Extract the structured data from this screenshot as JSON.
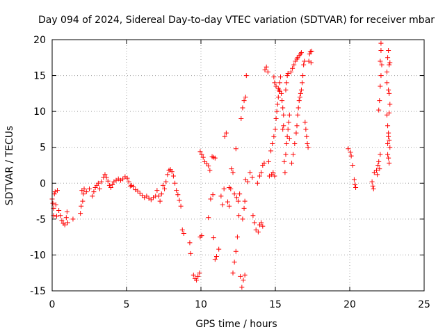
{
  "chart_data": {
    "type": "scatter",
    "title": "Day 094 of 2024, Sidereal Day-to-day VTEC variation (SDTVAR) for receiver mbar",
    "xlabel": "GPS time / hours",
    "ylabel": "SDTVAR / TECUs",
    "xlim": [
      0,
      25
    ],
    "ylim": [
      -15,
      20
    ],
    "xticks": [
      "0",
      "5",
      "10",
      "15",
      "20",
      "25"
    ],
    "yticks": [
      "-15",
      "-10",
      "-5",
      "0",
      "5",
      "10",
      "15",
      "20"
    ],
    "grid": true,
    "marker": "plus",
    "color": "#ff0000",
    "series": [
      {
        "points": [
          [
            0.0,
            -2.2
          ],
          [
            0.05,
            -2.8
          ],
          [
            0.1,
            -3.5
          ],
          [
            0.1,
            -4.5
          ],
          [
            0.15,
            -1.5
          ],
          [
            0.2,
            -1.2
          ],
          [
            0.25,
            -3.0
          ],
          [
            0.3,
            -4.6
          ],
          [
            0.35,
            -1.0
          ],
          [
            0.45,
            -3.8
          ],
          [
            0.55,
            -4.5
          ],
          [
            0.65,
            -5.2
          ],
          [
            0.75,
            -5.6
          ],
          [
            0.85,
            -5.8
          ],
          [
            0.95,
            -4.8
          ],
          [
            1.0,
            -4.0
          ],
          [
            1.05,
            -5.5
          ],
          [
            1.4,
            -5.0
          ],
          [
            1.9,
            -4.2
          ],
          [
            1.95,
            -3.2
          ],
          [
            2.0,
            -1.0
          ],
          [
            2.05,
            -2.5
          ],
          [
            2.1,
            -1.5
          ],
          [
            2.15,
            -0.8
          ],
          [
            2.3,
            -1.2
          ],
          [
            2.5,
            -0.8
          ],
          [
            2.7,
            -1.8
          ],
          [
            2.8,
            -1.2
          ],
          [
            2.9,
            -0.6
          ],
          [
            3.0,
            -0.3
          ],
          [
            3.1,
            0.0
          ],
          [
            3.2,
            -0.8
          ],
          [
            3.3,
            0.2
          ],
          [
            3.45,
            0.8
          ],
          [
            3.55,
            1.2
          ],
          [
            3.65,
            0.8
          ],
          [
            3.75,
            0.3
          ],
          [
            3.85,
            -0.3
          ],
          [
            3.95,
            -0.6
          ],
          [
            4.05,
            -0.2
          ],
          [
            4.15,
            0.2
          ],
          [
            4.3,
            0.4
          ],
          [
            4.45,
            0.6
          ],
          [
            4.6,
            0.4
          ],
          [
            4.75,
            0.6
          ],
          [
            4.9,
            0.9
          ],
          [
            5.05,
            0.7
          ],
          [
            5.15,
            0.2
          ],
          [
            5.25,
            -0.4
          ],
          [
            5.35,
            -0.3
          ],
          [
            5.45,
            -0.5
          ],
          [
            5.6,
            -0.9
          ],
          [
            5.75,
            -1.1
          ],
          [
            5.9,
            -1.4
          ],
          [
            6.05,
            -1.7
          ],
          [
            6.2,
            -2.0
          ],
          [
            6.35,
            -1.8
          ],
          [
            6.5,
            -2.1
          ],
          [
            6.65,
            -2.3
          ],
          [
            6.8,
            -2.0
          ],
          [
            6.95,
            -1.8
          ],
          [
            7.05,
            -1.0
          ],
          [
            7.15,
            -1.8
          ],
          [
            7.25,
            -2.5
          ],
          [
            7.35,
            -1.5
          ],
          [
            7.45,
            -0.3
          ],
          [
            7.55,
            -0.8
          ],
          [
            7.65,
            0.2
          ],
          [
            7.75,
            1.2
          ],
          [
            7.85,
            1.8
          ],
          [
            7.95,
            1.9
          ],
          [
            8.05,
            1.6
          ],
          [
            8.15,
            1.0
          ],
          [
            8.25,
            0.0
          ],
          [
            8.35,
            -1.0
          ],
          [
            8.45,
            -1.6
          ],
          [
            8.55,
            -2.4
          ],
          [
            8.65,
            -3.2
          ],
          [
            8.75,
            -6.5
          ],
          [
            8.85,
            -7.0
          ],
          [
            9.25,
            -8.3
          ],
          [
            9.3,
            -9.8
          ],
          [
            9.5,
            -12.8
          ],
          [
            9.6,
            -13.3
          ],
          [
            9.7,
            -13.5
          ],
          [
            9.8,
            -13.0
          ],
          [
            9.9,
            -12.5
          ],
          [
            9.95,
            -7.5
          ],
          [
            10.05,
            -7.3
          ],
          [
            9.95,
            4.4
          ],
          [
            10.05,
            4.0
          ],
          [
            10.15,
            3.6
          ],
          [
            10.25,
            3.0
          ],
          [
            10.4,
            2.7
          ],
          [
            10.5,
            2.4
          ],
          [
            10.6,
            1.8
          ],
          [
            10.75,
            3.7
          ],
          [
            10.85,
            3.6
          ],
          [
            10.95,
            3.5
          ],
          [
            10.5,
            -4.8
          ],
          [
            10.65,
            -2.2
          ],
          [
            10.8,
            -1.6
          ],
          [
            10.85,
            -7.6
          ],
          [
            10.95,
            -10.6
          ],
          [
            11.05,
            -10.2
          ],
          [
            11.2,
            -9.2
          ],
          [
            11.35,
            -1.8
          ],
          [
            11.45,
            -3.0
          ],
          [
            11.55,
            -0.8
          ],
          [
            11.6,
            6.5
          ],
          [
            11.7,
            7.0
          ],
          [
            11.8,
            -2.6
          ],
          [
            11.9,
            -3.2
          ],
          [
            11.9,
            -0.6
          ],
          [
            12.0,
            -0.8
          ],
          [
            12.05,
            2.0
          ],
          [
            12.15,
            1.5
          ],
          [
            12.25,
            -1.5
          ],
          [
            12.35,
            4.8
          ],
          [
            12.4,
            -2.0
          ],
          [
            12.5,
            -2.5
          ],
          [
            12.55,
            -4.5
          ],
          [
            12.65,
            -13.0
          ],
          [
            12.75,
            -14.5
          ],
          [
            12.85,
            -13.5
          ],
          [
            12.95,
            -12.8
          ],
          [
            12.8,
            -5.0
          ],
          [
            12.9,
            -3.5
          ],
          [
            12.95,
            -2.5
          ],
          [
            12.6,
            -1.5
          ],
          [
            12.45,
            -7.5
          ],
          [
            12.35,
            -9.5
          ],
          [
            12.25,
            -11.0
          ],
          [
            12.15,
            -12.5
          ],
          [
            12.7,
            9.0
          ],
          [
            12.8,
            10.5
          ],
          [
            12.9,
            11.5
          ],
          [
            13.0,
            12.0
          ],
          [
            13.05,
            15.0
          ],
          [
            13.0,
            0.5
          ],
          [
            13.15,
            0.2
          ],
          [
            13.3,
            1.5
          ],
          [
            13.45,
            0.8
          ],
          [
            13.5,
            -4.5
          ],
          [
            13.6,
            -5.5
          ],
          [
            13.7,
            -6.5
          ],
          [
            13.85,
            -6.8
          ],
          [
            13.95,
            -5.8
          ],
          [
            14.05,
            -5.5
          ],
          [
            14.15,
            -6.0
          ],
          [
            13.8,
            0.0
          ],
          [
            13.95,
            1.0
          ],
          [
            14.05,
            1.5
          ],
          [
            14.15,
            2.5
          ],
          [
            14.25,
            2.8
          ],
          [
            14.3,
            15.8
          ],
          [
            14.4,
            16.2
          ],
          [
            14.5,
            15.5
          ],
          [
            14.6,
            1.0
          ],
          [
            14.75,
            1.2
          ],
          [
            14.85,
            1.5
          ],
          [
            14.95,
            1.0
          ],
          [
            14.55,
            3.0
          ],
          [
            14.7,
            4.5
          ],
          [
            14.8,
            5.5
          ],
          [
            14.9,
            6.5
          ],
          [
            15.0,
            7.5
          ],
          [
            15.05,
            9.0
          ],
          [
            15.1,
            10.0
          ],
          [
            15.15,
            11.0
          ],
          [
            15.2,
            12.0
          ],
          [
            15.25,
            13.0
          ],
          [
            15.3,
            14.0
          ],
          [
            15.35,
            14.8
          ],
          [
            14.9,
            14.8
          ],
          [
            14.95,
            14.0
          ],
          [
            15.05,
            13.5
          ],
          [
            15.2,
            13.2
          ],
          [
            15.3,
            12.8
          ],
          [
            15.4,
            12.5
          ],
          [
            15.45,
            11.5
          ],
          [
            15.5,
            10.5
          ],
          [
            15.55,
            9.5
          ],
          [
            15.5,
            7.5
          ],
          [
            15.55,
            8.0
          ],
          [
            15.6,
            3.0
          ],
          [
            15.65,
            1.5
          ],
          [
            15.7,
            4.0
          ],
          [
            15.75,
            5.5
          ],
          [
            15.8,
            6.5
          ],
          [
            15.85,
            7.5
          ],
          [
            15.9,
            8.5
          ],
          [
            15.95,
            9.5
          ],
          [
            15.7,
            13.0
          ],
          [
            15.75,
            14.0
          ],
          [
            15.8,
            15.0
          ],
          [
            15.85,
            15.3
          ],
          [
            15.95,
            6.2
          ],
          [
            16.05,
            15.5
          ],
          [
            16.15,
            16.0
          ],
          [
            16.25,
            16.5
          ],
          [
            16.35,
            17.0
          ],
          [
            16.45,
            17.3
          ],
          [
            16.5,
            17.5
          ],
          [
            16.6,
            17.8
          ],
          [
            16.7,
            18.0
          ],
          [
            16.75,
            18.2
          ],
          [
            16.1,
            2.8
          ],
          [
            16.2,
            4.0
          ],
          [
            16.3,
            5.5
          ],
          [
            16.4,
            7.0
          ],
          [
            16.45,
            8.0
          ],
          [
            16.5,
            9.5
          ],
          [
            16.55,
            10.5
          ],
          [
            16.6,
            11.5
          ],
          [
            16.65,
            12.0
          ],
          [
            16.7,
            12.5
          ],
          [
            16.75,
            13.0
          ],
          [
            16.8,
            14.0
          ],
          [
            16.85,
            15.0
          ],
          [
            16.9,
            16.5
          ],
          [
            16.95,
            17.0
          ],
          [
            17.0,
            8.5
          ],
          [
            17.05,
            7.5
          ],
          [
            17.1,
            6.5
          ],
          [
            17.15,
            5.5
          ],
          [
            17.2,
            5.0
          ],
          [
            17.25,
            17.0
          ],
          [
            17.3,
            18.0
          ],
          [
            17.35,
            18.3
          ],
          [
            17.4,
            16.8
          ],
          [
            17.45,
            18.4
          ],
          [
            19.9,
            4.8
          ],
          [
            20.05,
            4.3
          ],
          [
            20.1,
            3.8
          ],
          [
            20.2,
            2.5
          ],
          [
            20.3,
            0.5
          ],
          [
            20.35,
            -0.2
          ],
          [
            20.4,
            -0.6
          ],
          [
            21.5,
            0.2
          ],
          [
            21.55,
            -0.4
          ],
          [
            21.6,
            -0.8
          ],
          [
            21.65,
            1.5
          ],
          [
            21.8,
            1.8
          ],
          [
            21.85,
            1.2
          ],
          [
            21.9,
            2.5
          ],
          [
            21.95,
            3.0
          ],
          [
            22.0,
            2.0
          ],
          [
            22.05,
            4.0
          ],
          [
            21.95,
            10.2
          ],
          [
            22.0,
            11.5
          ],
          [
            22.05,
            13.5
          ],
          [
            22.1,
            15.0
          ],
          [
            22.15,
            16.5
          ],
          [
            22.05,
            17.0
          ],
          [
            22.1,
            18.5
          ],
          [
            22.1,
            19.5
          ],
          [
            22.5,
            15.5
          ],
          [
            22.55,
            17.5
          ],
          [
            22.6,
            18.5
          ],
          [
            22.65,
            16.5
          ],
          [
            22.7,
            16.8
          ],
          [
            22.5,
            14.0
          ],
          [
            22.6,
            13.0
          ],
          [
            22.65,
            12.5
          ],
          [
            22.7,
            11.0
          ],
          [
            22.5,
            9.5
          ],
          [
            22.55,
            8.0
          ],
          [
            22.6,
            7.0
          ],
          [
            22.65,
            6.0
          ],
          [
            22.7,
            5.0
          ],
          [
            22.55,
            4.0
          ],
          [
            22.6,
            3.5
          ],
          [
            22.65,
            2.8
          ],
          [
            22.55,
            5.5
          ],
          [
            22.6,
            6.5
          ],
          [
            22.65,
            9.8
          ]
        ]
      }
    ]
  }
}
